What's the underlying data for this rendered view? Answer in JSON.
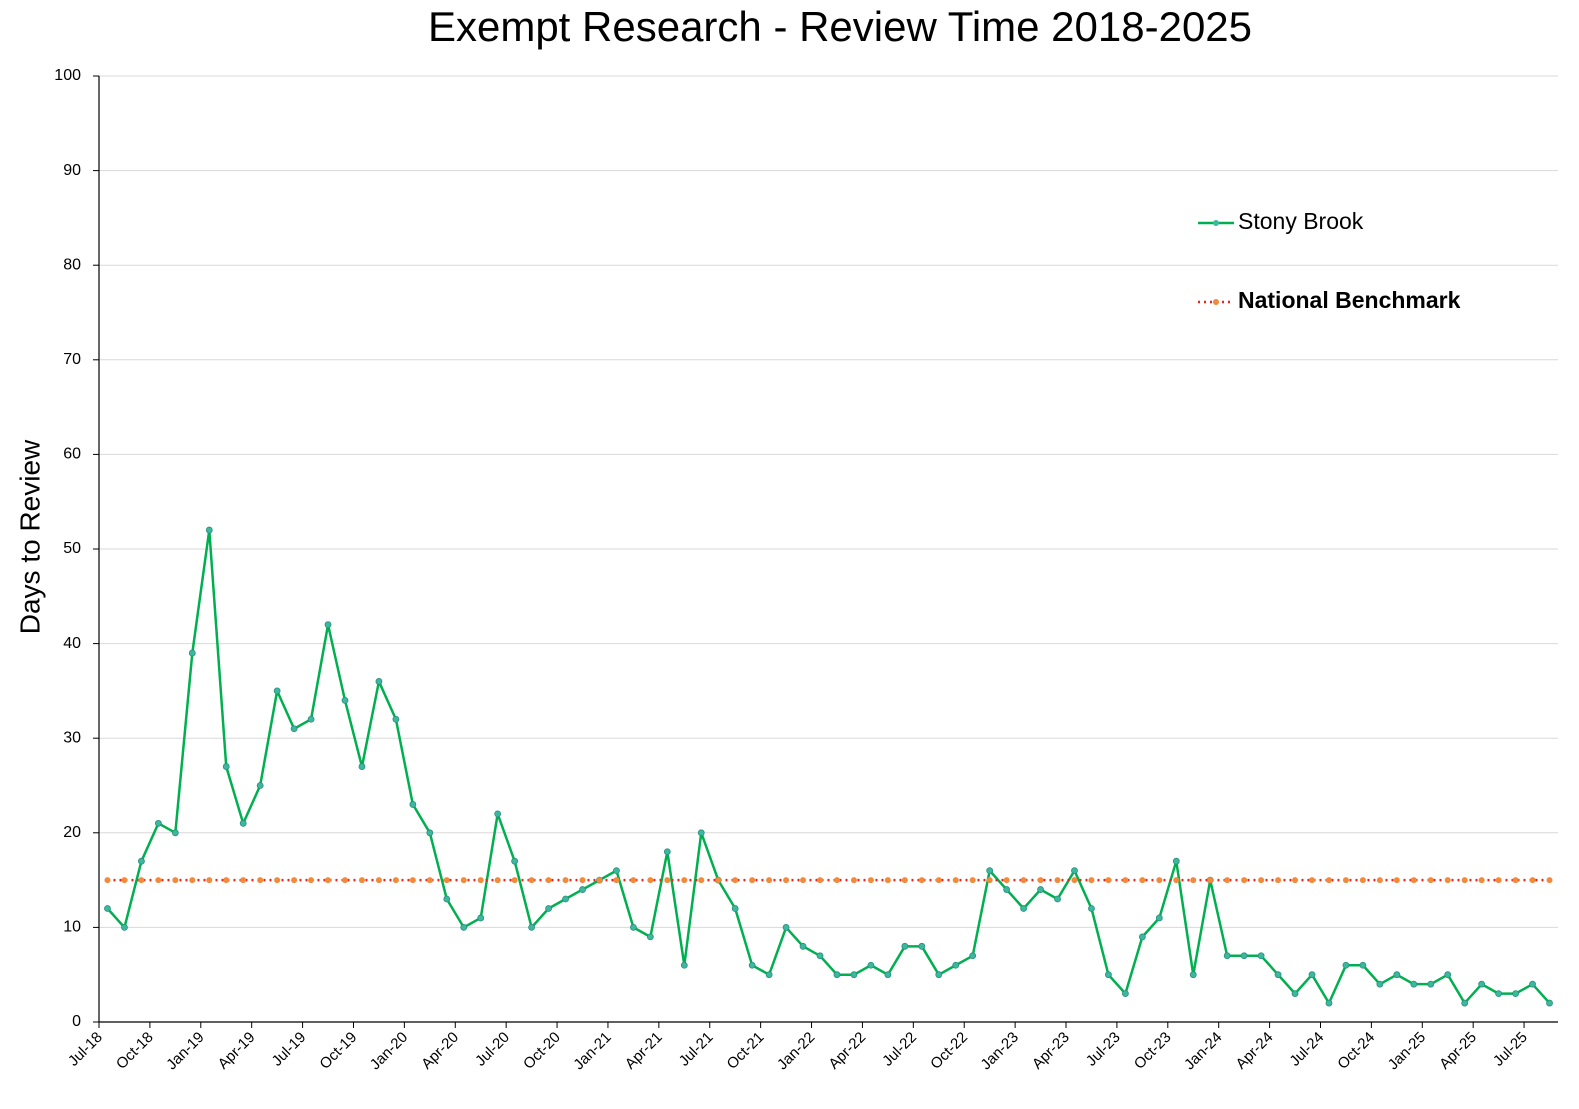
{
  "chart_data": {
    "type": "line",
    "title": "Exempt Research - Review Time 2018-2025",
    "y_label": "Days to Review",
    "categories": [
      "Jul-18",
      null,
      null,
      "Oct-18",
      null,
      null,
      "Jan-19",
      null,
      null,
      "Apr-19",
      null,
      null,
      "Jul-19",
      null,
      null,
      "Oct-19",
      null,
      null,
      "Jan-20",
      null,
      null,
      "Apr-20",
      null,
      null,
      "Jul-20",
      null,
      null,
      "Oct-20",
      null,
      null,
      "Jan-21",
      null,
      null,
      "Apr-21",
      null,
      null,
      "Jul-21",
      null,
      null,
      "Oct-21",
      null,
      null,
      "Jan-22",
      null,
      null,
      "Apr-22",
      null,
      null,
      "Jul-22",
      null,
      null,
      "Oct-22",
      null,
      null,
      "Jan-23",
      null,
      null,
      "Apr-23",
      null,
      null,
      "Jul-23",
      null,
      null,
      "Oct-23",
      null,
      null,
      "Jan-24",
      null,
      null,
      "Apr-24",
      null,
      null,
      "Jul-24",
      null,
      null,
      "Oct-24",
      null,
      null,
      "Jan-25",
      null,
      null,
      "Apr-25",
      null,
      null,
      "Jul-25",
      null
    ],
    "series": [
      {
        "name": "Stony Brook",
        "color": "#00b050",
        "marker_color": "#3cb8a0",
        "dash": "solid",
        "values": [
          12,
          10,
          17,
          21,
          20,
          39,
          52,
          27,
          21,
          25,
          35,
          31,
          32,
          42,
          34,
          27,
          36,
          32,
          23,
          20,
          13,
          10,
          11,
          22,
          17,
          10,
          12,
          13,
          14,
          15,
          16,
          10,
          9,
          18,
          6,
          20,
          15,
          12,
          6,
          5,
          10,
          8,
          7,
          5,
          5,
          6,
          5,
          8,
          8,
          5,
          6,
          7,
          16,
          14,
          12,
          14,
          13,
          16,
          12,
          5,
          3,
          9,
          11,
          17,
          5,
          15,
          7,
          7,
          7,
          5,
          3,
          5,
          2,
          6,
          6,
          4,
          5,
          4,
          4,
          5,
          2,
          4,
          3,
          3,
          4,
          2
        ]
      },
      {
        "name": "National Benchmark",
        "color": "#e8231a",
        "marker_color": "#f28a3c",
        "dash": "dotted",
        "values": [
          15,
          15,
          15,
          15,
          15,
          15,
          15,
          15,
          15,
          15,
          15,
          15,
          15,
          15,
          15,
          15,
          15,
          15,
          15,
          15,
          15,
          15,
          15,
          15,
          15,
          15,
          15,
          15,
          15,
          15,
          15,
          15,
          15,
          15,
          15,
          15,
          15,
          15,
          15,
          15,
          15,
          15,
          15,
          15,
          15,
          15,
          15,
          15,
          15,
          15,
          15,
          15,
          15,
          15,
          15,
          15,
          15,
          15,
          15,
          15,
          15,
          15,
          15,
          15,
          15,
          15,
          15,
          15,
          15,
          15,
          15,
          15,
          15,
          15,
          15,
          15,
          15,
          15,
          15,
          15,
          15,
          15,
          15,
          15,
          15,
          15
        ]
      }
    ],
    "ylim": [
      0,
      100
    ],
    "yticks": [
      0,
      10,
      20,
      30,
      40,
      50,
      60,
      70,
      80,
      90,
      100
    ],
    "grid": true,
    "legend": "upper right"
  }
}
